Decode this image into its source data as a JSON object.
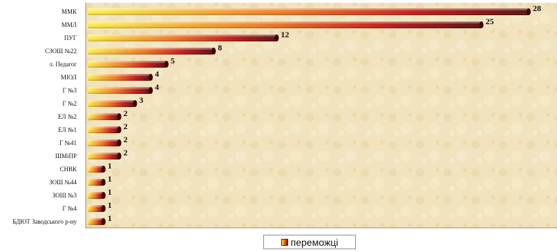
{
  "chart_data": {
    "type": "bar",
    "orientation": "horizontal",
    "categories": [
      "ММК",
      "ММЛ",
      "ПУГ",
      "СЗОШ №22",
      "л. Педагог",
      "МІОЛ",
      "Г №3",
      "Г №2",
      "ЕЛ №2",
      "ЕЛ №1",
      "Г №41",
      "ШМіПР",
      "СНВК",
      "ЗОШ №44",
      "ЗОШ №3",
      "Г №4",
      "БДЮТ Заводського р-ну"
    ],
    "series": [
      {
        "name": "переможці",
        "values": [
          28,
          25,
          12,
          8,
          5,
          4,
          4,
          3,
          2,
          2,
          2,
          2,
          1,
          1,
          1,
          1,
          1
        ]
      }
    ],
    "xlim": [
      0,
      28
    ],
    "grid": false,
    "legend_position": "bottom",
    "data_labels": true
  },
  "legend": {
    "label": "переможці"
  },
  "colors": {
    "bar_start": "#ffe23a",
    "bar_mid": "#e8611c",
    "bar_end": "#8d0b10",
    "background": "#f1e3be"
  }
}
